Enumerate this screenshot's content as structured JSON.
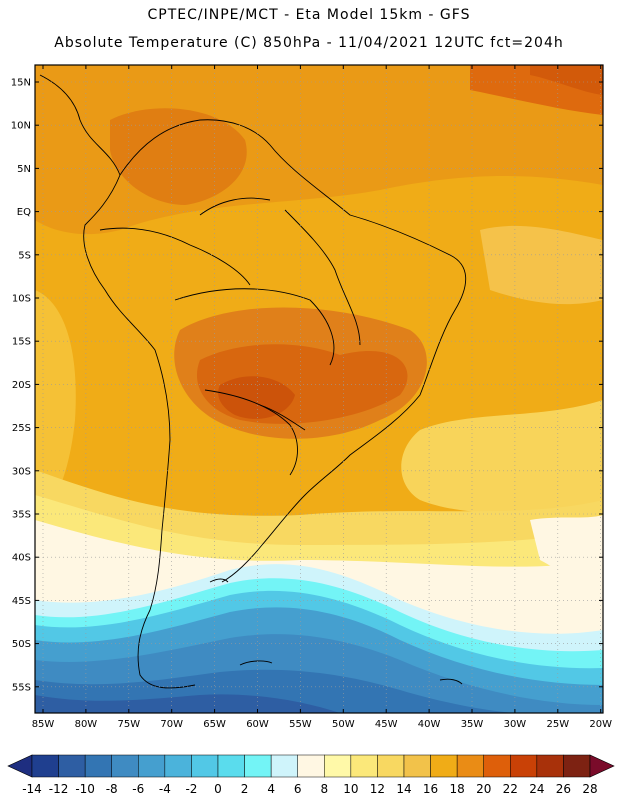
{
  "header": {
    "line1": "CPTEC/INPE/MCT -  Eta Model 15km - GFS",
    "line2": "Absolute Temperature (C) 850hPa - 11/04/2021 12UTC fct=204h"
  },
  "map": {
    "lat_ticks": [
      "15N",
      "10N",
      "5N",
      "EQ",
      "5S",
      "10S",
      "15S",
      "20S",
      "25S",
      "30S",
      "35S",
      "40S",
      "45S",
      "50S",
      "55S"
    ],
    "lon_ticks": [
      "85W",
      "80W",
      "75W",
      "70W",
      "65W",
      "60W",
      "55W",
      "50W",
      "45W",
      "40W",
      "35W",
      "30W",
      "25W",
      "20W"
    ]
  },
  "colorbar": {
    "labels": [
      "-14",
      "-12",
      "-10",
      "-8",
      "-6",
      "-4",
      "-2",
      "0",
      "2",
      "4",
      "6",
      "8",
      "10",
      "12",
      "14",
      "16",
      "18",
      "20",
      "22",
      "24",
      "26",
      "28"
    ],
    "colors": [
      "#1f3f8f",
      "#2e5ea3",
      "#3375b3",
      "#3f8bc2",
      "#459fcf",
      "#4bb3db",
      "#52c8e6",
      "#5adced",
      "#73f4f6",
      "#cff4fb",
      "#fff7e3",
      "#fff9a8",
      "#fbe87a",
      "#f8d861",
      "#f2c24a",
      "#f0ac17",
      "#ea8c15",
      "#de5f0a",
      "#c94106",
      "#a8310a",
      "#7d2212"
    ],
    "under_color": "#1e2e80",
    "over_color": "#7a0b2a"
  }
}
